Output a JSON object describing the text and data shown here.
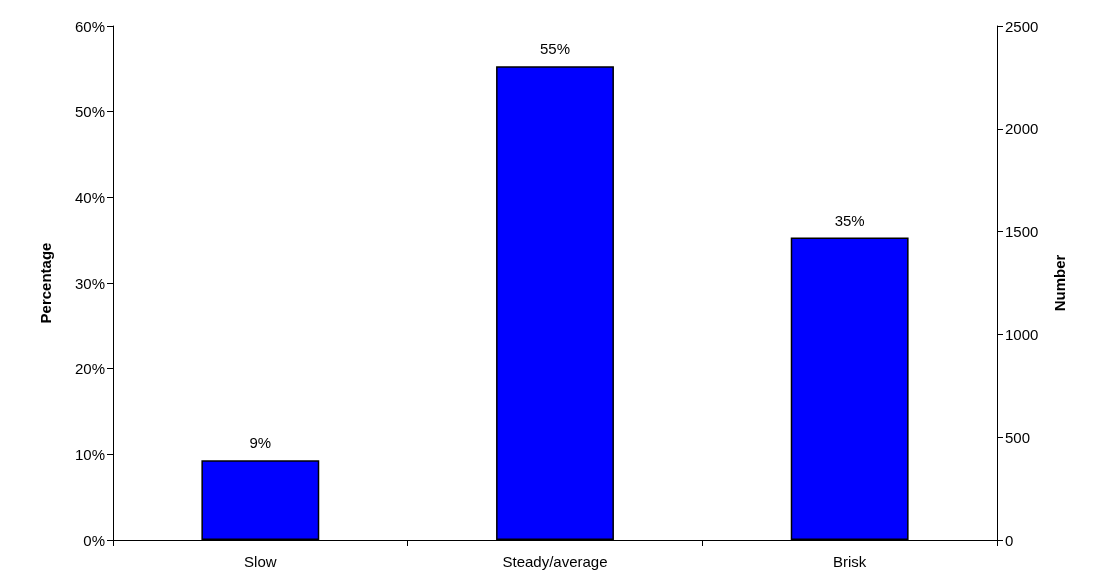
{
  "chart_data": {
    "type": "bar",
    "categories": [
      "Slow",
      "Steady/average",
      "Brisk"
    ],
    "values": [
      9.3,
      55.3,
      35.3
    ],
    "value_labels": [
      "9%",
      "55%",
      "35%"
    ],
    "color": "#0000ff",
    "ylabel": "Percentage",
    "y2label": "Number",
    "ylim": [
      0,
      60
    ],
    "yticks": [
      {
        "value": 0,
        "label": "0%"
      },
      {
        "value": 10,
        "label": "10%"
      },
      {
        "value": 20,
        "label": "20%"
      },
      {
        "value": 30,
        "label": "30%"
      },
      {
        "value": 40,
        "label": "40%"
      },
      {
        "value": 50,
        "label": "50%"
      },
      {
        "value": 60,
        "label": "60%"
      }
    ],
    "y2lim": [
      0,
      2500
    ],
    "y2ticks": [
      0,
      500,
      1000,
      1500,
      2000,
      2500
    ],
    "grid": false
  }
}
